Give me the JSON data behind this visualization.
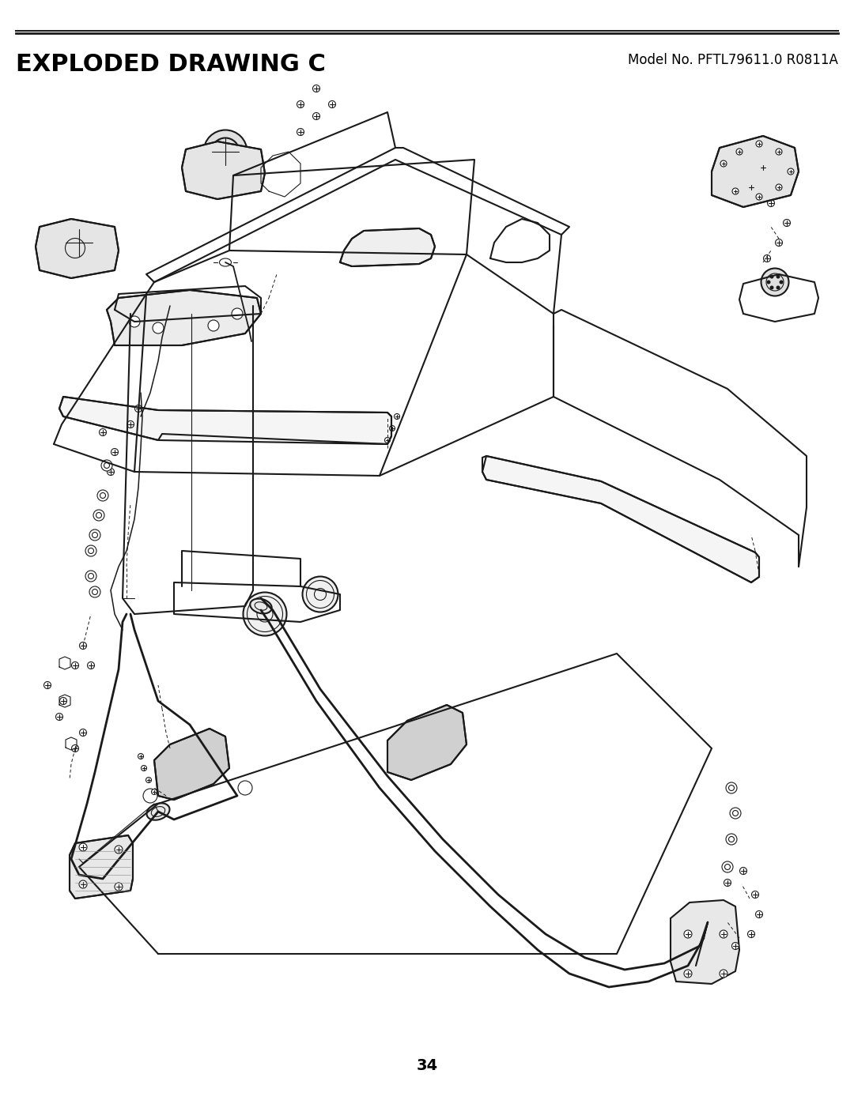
{
  "title": "EXPLODED DRAWING C",
  "model_no": "Model No. PFTL79611.0 R0811A",
  "page_number": "34",
  "bg_color": "#ffffff",
  "title_color": "#000000",
  "line_color": "#1a1a1a",
  "title_fontsize": 22,
  "model_fontsize": 12,
  "page_fontsize": 14,
  "figsize": [
    10.8,
    13.97
  ],
  "dpi": 100
}
